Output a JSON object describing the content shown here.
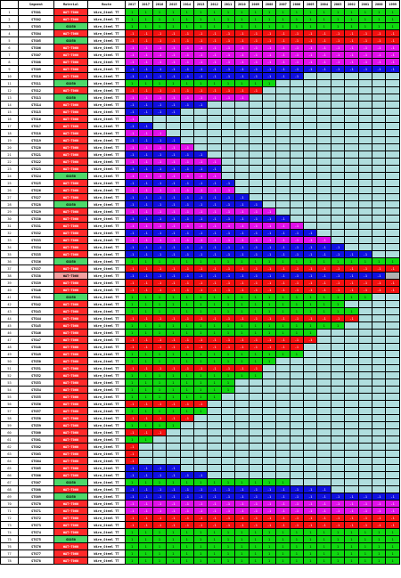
{
  "colors": {
    "g": "#10d810",
    "r": "#f21010",
    "m": "#e010e8",
    "b": "#1010e0",
    "x": "#b0dede",
    "s": "#b0b0b0",
    "w": "#ffffff",
    "mat_red": "#ff2a2a",
    "mat_green": "#4ed86a",
    "mat_pink": "#f5a0a0"
  },
  "headers": {
    "c0": "",
    "c1": "Segment",
    "c2": "Material",
    "c3": "Route",
    "years": [
      "2017",
      "2017",
      "2016",
      "2015",
      "2014",
      "2013",
      "2012",
      "2011",
      "2010",
      "2009",
      "2008",
      "2007",
      "2006",
      "2005",
      "2004",
      "2003",
      "2002",
      "2001",
      "2000",
      "1999"
    ]
  },
  "cell_labels": {
    "g": "1",
    "r": "-1",
    "m": "-1",
    "b": "-1"
  },
  "rows": [
    {
      "idx": "1",
      "seg": "STG01",
      "mat": "WAT-T060",
      "matc": "red",
      "route": "Wire_Steel TT",
      "pat": "gggggggggggggggggggg"
    },
    {
      "idx": "2",
      "seg": "STG02",
      "mat": "WAT-T060",
      "matc": "red",
      "route": "Wire_Steel TT",
      "pat": "gggggggggggggggggggg"
    },
    {
      "idx": "3",
      "seg": "STG03",
      "mat": "GS050",
      "matc": "green",
      "route": "Wire_Steel TT",
      "pat": "gggggggggggggggggggg"
    },
    {
      "idx": "4",
      "seg": "STG04",
      "mat": "WAT-T060",
      "matc": "red",
      "route": "Wire_Steel TT",
      "pat": "rrrrrrrrrrrrrrrrrrrr"
    },
    {
      "idx": "5",
      "seg": "STG05",
      "mat": "GS050",
      "matc": "green",
      "route": "Wire_Steel TT",
      "pat": "rrrrrrrrrrrrrrrrrrrr"
    },
    {
      "idx": "6",
      "seg": "STG06",
      "mat": "WAT-T060",
      "matc": "red",
      "route": "Wire_Steel TT",
      "pat": "mmmmmmmmmmmmmmmmmmmm"
    },
    {
      "idx": "7",
      "seg": "STG07",
      "mat": "WAT-T060",
      "matc": "red",
      "route": "Wire_Steel TT",
      "pat": "mmmmmmmmmmmmmmmmmmmm"
    },
    {
      "idx": "8",
      "seg": "STG08",
      "mat": "WAT-T060",
      "matc": "red",
      "route": "Wire_Steel TT",
      "pat": "mmmmmmmmmmmmmmmmmmmm"
    },
    {
      "idx": "9",
      "seg": "STG09",
      "mat": "WAT-T060",
      "matc": "red",
      "route": "Wire_Steel TT",
      "pat": "bbbbbbbbbbbbbbbbbbbb"
    },
    {
      "idx": "10",
      "seg": "STG10",
      "mat": "WAT-T060",
      "matc": "red",
      "route": "Wire_Steel TT",
      "pat": "bbbbbbbbbbbbbxxxxxxx"
    },
    {
      "idx": "11",
      "seg": "STG11",
      "mat": "GS050",
      "matc": "green",
      "route": "Wire_Steel TT",
      "pat": "gggggggggggxxxxxxxxx"
    },
    {
      "idx": "12",
      "seg": "STG12",
      "mat": "WAT-T060",
      "matc": "red",
      "route": "Wire_Steel TT",
      "pat": "rrrrrrrrrrxxxxxxxxxx"
    },
    {
      "idx": "13",
      "seg": "STG13",
      "mat": "GS050",
      "matc": "green",
      "route": "Wire_Steel TT",
      "pat": "mmmmmmmmmxxxxxxxxxxx"
    },
    {
      "idx": "14",
      "seg": "STG14",
      "mat": "WAT-T060",
      "matc": "red",
      "route": "Wire_Steel TT",
      "pat": "bbbbbbxxxxxxxxxxxxxx"
    },
    {
      "idx": "15",
      "seg": "STG15",
      "mat": "WAT-T060",
      "matc": "red",
      "route": "Wire_Steel TT",
      "pat": "bbbbxxxxxxxxxxxxxxxx"
    },
    {
      "idx": "16",
      "seg": "STG16",
      "mat": "WAT-T060",
      "matc": "red",
      "route": "Wire_Steel TT",
      "pat": "mxxxxxxxxxxxxxxxxxxx"
    },
    {
      "idx": "17",
      "seg": "STG17",
      "mat": "WAT-T060",
      "matc": "red",
      "route": "Wire_Steel TT",
      "pat": "bbxxxxxxxxxxxxxxxxxx"
    },
    {
      "idx": "18",
      "seg": "STG18",
      "mat": "WAT-T060",
      "matc": "red",
      "route": "Wire_Steel TT",
      "pat": "mmmxxxxxxxxxxxxxxxxx"
    },
    {
      "idx": "19",
      "seg": "STG19",
      "mat": "WAT-T060",
      "matc": "red",
      "route": "Wire_Steel TT",
      "pat": "bbbbxxxxxxxxxxxxxxxx"
    },
    {
      "idx": "20",
      "seg": "STG20",
      "mat": "WAT-T060",
      "matc": "red",
      "route": "Wire_Steel TT",
      "pat": "mmmmmxxxxxxxxxxxxxxx"
    },
    {
      "idx": "21",
      "seg": "STG21",
      "mat": "WAT-T060",
      "matc": "red",
      "route": "Wire_Steel TT",
      "pat": "bbbbbbxxxxxxxxxxxxxx"
    },
    {
      "idx": "22",
      "seg": "STG22",
      "mat": "WAT-T060",
      "matc": "red",
      "route": "Wire_Steel TT",
      "pat": "mmmmmmmxxxxxxxxxxxxx"
    },
    {
      "idx": "23",
      "seg": "STG23",
      "mat": "WAT-T060",
      "matc": "red",
      "route": "Wire_Steel TT",
      "pat": "bbbbbbbxxxxxxxxxxxxx"
    },
    {
      "idx": "24",
      "seg": "STG24",
      "mat": "GS050",
      "matc": "green",
      "route": "Wire_Steel TT",
      "pat": "mmmmmmmxxxxxxxxxxxxx"
    },
    {
      "idx": "25",
      "seg": "STG25",
      "mat": "WAT-T060",
      "matc": "red",
      "route": "Wire_Steel TT",
      "pat": "bbbbbbbbxxxxxxxxxxxx"
    },
    {
      "idx": "26",
      "seg": "STG26",
      "mat": "WAT-T060",
      "matc": "red",
      "route": "Wire_Steel TT",
      "pat": "mmmmmmmmxxxxxxxxxxxx"
    },
    {
      "idx": "27",
      "seg": "STG27",
      "mat": "WAT-T060",
      "matc": "red",
      "route": "Wire_Steel TT",
      "pat": "bbbbbbbbbxxxxxxxxxxx"
    },
    {
      "idx": "28",
      "seg": "STG28",
      "mat": "GS050",
      "matc": "green",
      "route": "Wire_Steel TT",
      "pat": "bbbbbbbbbbxxxxxxxxxx"
    },
    {
      "idx": "29",
      "seg": "STG29",
      "mat": "WAT-T060",
      "matc": "red",
      "route": "Wire_Steel TT",
      "pat": "mmmmmmmmmmmxxxxxxxxx"
    },
    {
      "idx": "30",
      "seg": "STG30",
      "mat": "WAT-T060",
      "matc": "red",
      "route": "Wire_Steel TT",
      "pat": "bbbbbbbbbbbbxxxxxxxx"
    },
    {
      "idx": "31",
      "seg": "STG31",
      "mat": "WAT-T060",
      "matc": "red",
      "route": "Wire_Steel TT",
      "pat": "mmmmmmmmmmmmmxxxxxxx"
    },
    {
      "idx": "32",
      "seg": "STG32",
      "mat": "WAT-T060",
      "matc": "red",
      "route": "Wire_Steel TT",
      "pat": "bbbbbbbbbbbbbbxxxxxx"
    },
    {
      "idx": "33",
      "seg": "STG33",
      "mat": "WAT-T060",
      "matc": "red",
      "route": "Wire_Steel TT",
      "pat": "mmmmmmmmmmmmmmmxxxxx"
    },
    {
      "idx": "34",
      "seg": "STG34",
      "mat": "WAT-T060",
      "matc": "red",
      "route": "Wire_Steel TT",
      "pat": "bbbbbbbbbbbbbbbbxxxx"
    },
    {
      "idx": "35",
      "seg": "STG35",
      "mat": "WAT-T060",
      "matc": "red",
      "route": "Wire_Steel TT",
      "pat": "bbbbbbbbbbbbbbbbbbxx"
    },
    {
      "idx": "36",
      "seg": "STG36",
      "mat": "GS050",
      "matc": "green",
      "route": "Wire_Steel TT",
      "pat": "gggggggggggggggggggg"
    },
    {
      "idx": "37",
      "seg": "STG37",
      "mat": "WAT-T060",
      "matc": "red",
      "route": "Wire_Steel TT",
      "pat": "rrrrrrrrrrrrrrrrrrrr"
    },
    {
      "idx": "38",
      "seg": "STG38",
      "mat": "WAT-T060",
      "matc": "pink",
      "route": "Wire_Steel TT",
      "pat": "bbbbbbbbbbbbbbbbbbbs"
    },
    {
      "idx": "39",
      "seg": "STG39",
      "mat": "WAT-T060",
      "matc": "red",
      "route": "Wire_Steel TT",
      "pat": "rrrrrrrrrrrrrrrrrrrr"
    },
    {
      "idx": "40",
      "seg": "STG40",
      "mat": "WAT-T060",
      "matc": "red",
      "route": "Wire_Steel TT",
      "pat": "rrrrrrrrrrrrrrrrrrrr"
    },
    {
      "idx": "41",
      "seg": "STG41",
      "mat": "GS050",
      "matc": "green",
      "route": "Wire_Steel TT",
      "pat": "ggggggggggggggggggxx"
    },
    {
      "idx": "42",
      "seg": "STG42",
      "mat": "WAT-T060",
      "matc": "red",
      "route": "Wire_Steel TT",
      "pat": "ggggggggggggggggxxxx"
    },
    {
      "idx": "43",
      "seg": "STG43",
      "mat": "WAT-T060",
      "matc": "red",
      "route": "Wire_Steel TT",
      "pat": "gggggggggggggggggxxx"
    },
    {
      "idx": "44",
      "seg": "STG44",
      "mat": "WAT-T060",
      "matc": "red",
      "route": "Wire_Steel TT",
      "pat": "rrrrrrrrrrrrrrrrrxxx"
    },
    {
      "idx": "45",
      "seg": "STG45",
      "mat": "WAT-T060",
      "matc": "red",
      "route": "Wire_Steel TT",
      "pat": "ggggggggggggggggxxxx"
    },
    {
      "idx": "46",
      "seg": "STG46",
      "mat": "WAT-T060",
      "matc": "red",
      "route": "Wire_Steel TT",
      "pat": "ggggggggggggggxxxxxx"
    },
    {
      "idx": "47",
      "seg": "STG47",
      "mat": "WAT-T060",
      "matc": "red",
      "route": "Wire_Steel TT",
      "pat": "rrrrrrrrrrrrrrxxxxxx"
    },
    {
      "idx": "48",
      "seg": "STG48",
      "mat": "WAT-T060",
      "matc": "red",
      "route": "Wire_Steel TT",
      "pat": "rrrrrrrrrrrrrxxxxxxx"
    },
    {
      "idx": "49",
      "seg": "STG49",
      "mat": "WAT-T060",
      "matc": "red",
      "route": "Wire_Steel TT",
      "pat": "gggggggggggggxxxxxxx"
    },
    {
      "idx": "50",
      "seg": "STG50",
      "mat": "WAT-T060",
      "matc": "red",
      "route": "Wire_Steel TT",
      "pat": "gggggggggggxxxxxxxxx"
    },
    {
      "idx": "51",
      "seg": "STG51",
      "mat": "WAT-T060",
      "matc": "red",
      "route": "Wire_Steel TT",
      "pat": "rrrrrrrrrrxxxxxxxxxx"
    },
    {
      "idx": "52",
      "seg": "STG52",
      "mat": "WAT-T060",
      "matc": "red",
      "route": "Wire_Steel TT",
      "pat": "ggggggggggxxxxxxxxxx"
    },
    {
      "idx": "53",
      "seg": "STG53",
      "mat": "WAT-T060",
      "matc": "red",
      "route": "Wire_Steel TT",
      "pat": "ggggggggxxxxxxxxxxxx"
    },
    {
      "idx": "54",
      "seg": "STG54",
      "mat": "WAT-T060",
      "matc": "red",
      "route": "Wire_Steel TT",
      "pat": "ggggggggxxxxxxxxxxxx"
    },
    {
      "idx": "55",
      "seg": "STG55",
      "mat": "WAT-T060",
      "matc": "red",
      "route": "Wire_Steel TT",
      "pat": "gggggggxxxxxxxxxxxxx"
    },
    {
      "idx": "56",
      "seg": "STG56",
      "mat": "WAT-T060",
      "matc": "red",
      "route": "Wire_Steel TT",
      "pat": "rrrrrrxxxxxxxxxxxxxx"
    },
    {
      "idx": "57",
      "seg": "STG57",
      "mat": "WAT-T060",
      "matc": "red",
      "route": "Wire_Steel TT",
      "pat": "ggggggxxxxxxxxxxxxxx"
    },
    {
      "idx": "58",
      "seg": "STG58",
      "mat": "WAT-T060",
      "matc": "red",
      "route": "Wire_Steel TT",
      "pat": "rrrrrxxxxxxxxxxxxxxx"
    },
    {
      "idx": "59",
      "seg": "STG59",
      "mat": "WAT-T060",
      "matc": "red",
      "route": "Wire_Steel TT",
      "pat": "ggggxxxxxxxxxxxxxxxx"
    },
    {
      "idx": "60",
      "seg": "STG60",
      "mat": "WAT-T060",
      "matc": "red",
      "route": "Wire_Steel TT",
      "pat": "rrrxxxxxxxxxxxxxxxxx"
    },
    {
      "idx": "61",
      "seg": "STG61",
      "mat": "WAT-T060",
      "matc": "red",
      "route": "Wire_Steel TT",
      "pat": "ggxxxxxxxxxxxxxxxxxx"
    },
    {
      "idx": "62",
      "seg": "STG62",
      "mat": "WAT-T060",
      "matc": "red",
      "route": "Wire_Steel TT",
      "pat": "rxxxxxxxxxxxxxxxxxxx"
    },
    {
      "idx": "63",
      "seg": "STG63",
      "mat": "WAT-T060",
      "matc": "red",
      "route": "Wire_Steel TT",
      "pat": "rxxxxxxxxxxxxxxxxxxx"
    },
    {
      "idx": "64",
      "seg": "STG64",
      "mat": "WAT-T060",
      "matc": "red",
      "route": "Wire_Steel TT",
      "pat": "rxxxxxxxxxxxxxxxxxxx"
    },
    {
      "idx": "65",
      "seg": "STG65",
      "mat": "WAT-T060",
      "matc": "red",
      "route": "Wire_Steel TT",
      "pat": "bbbbxxxxxxxxxxxxxxxx"
    },
    {
      "idx": "66",
      "seg": "STG66",
      "mat": "WAT-T060",
      "matc": "red",
      "route": "Wire_Steel TT",
      "pat": "bbbbbbxxxxxxxxxxxxxx"
    },
    {
      "idx": "67",
      "seg": "STG67",
      "mat": "GS050",
      "matc": "green",
      "route": "Wire_Steel TT",
      "pat": "ggggggggggggxxxxxxxx"
    },
    {
      "idx": "68",
      "seg": "STG68",
      "mat": "WAT-T060",
      "matc": "red",
      "route": "Wire_Steel TT",
      "pat": "bbbbbbbbbbbbbbbxxxxx"
    },
    {
      "idx": "69",
      "seg": "STG69",
      "mat": "GS050",
      "matc": "green",
      "route": "Wire_Steel TT",
      "pat": "bbbbbbbbbbbbbbbbbbbb"
    },
    {
      "idx": "70",
      "seg": "STG70",
      "mat": "WAT-T060",
      "matc": "red",
      "route": "Wire_Steel TT",
      "pat": "mmmmmmmmmmmmmmmmmmmm"
    },
    {
      "idx": "71",
      "seg": "STG71",
      "mat": "WAT-T060",
      "matc": "red",
      "route": "Wire_Steel TT",
      "pat": "mmmmmmmmmmmmmmmmmmmm"
    },
    {
      "idx": "72",
      "seg": "STG72",
      "mat": "WAT-T060",
      "matc": "red",
      "route": "Wire_Steel TT",
      "pat": "rrrrrrrrrrrrrrrrrrrr"
    },
    {
      "idx": "73",
      "seg": "STG73",
      "mat": "WAT-T060",
      "matc": "red",
      "route": "Wire_Steel TT",
      "pat": "rrrrrrrrrrrrrrrrrrrr"
    },
    {
      "idx": "74",
      "seg": "STG74",
      "mat": "WAT-T060",
      "matc": "red",
      "route": "Wire_Steel TT",
      "pat": "gggggggggggggggggggg"
    },
    {
      "idx": "75",
      "seg": "STG75",
      "mat": "GS050",
      "matc": "green",
      "route": "Wire_Steel TT",
      "pat": "gggggggggggggggggggg"
    },
    {
      "idx": "76",
      "seg": "STG76",
      "mat": "WAT-T060",
      "matc": "red",
      "route": "Wire_Steel TT",
      "pat": "gggggggggggggggggggg"
    },
    {
      "idx": "77",
      "seg": "STG77",
      "mat": "WAT-T060",
      "matc": "red",
      "route": "Wire_Steel TT",
      "pat": "gggggggggggggggggggg"
    },
    {
      "idx": "78",
      "seg": "STG78",
      "mat": "WAT-T060",
      "matc": "red",
      "route": "Wire_Steel TT",
      "pat": "gggggggggggggggggggg"
    }
  ]
}
